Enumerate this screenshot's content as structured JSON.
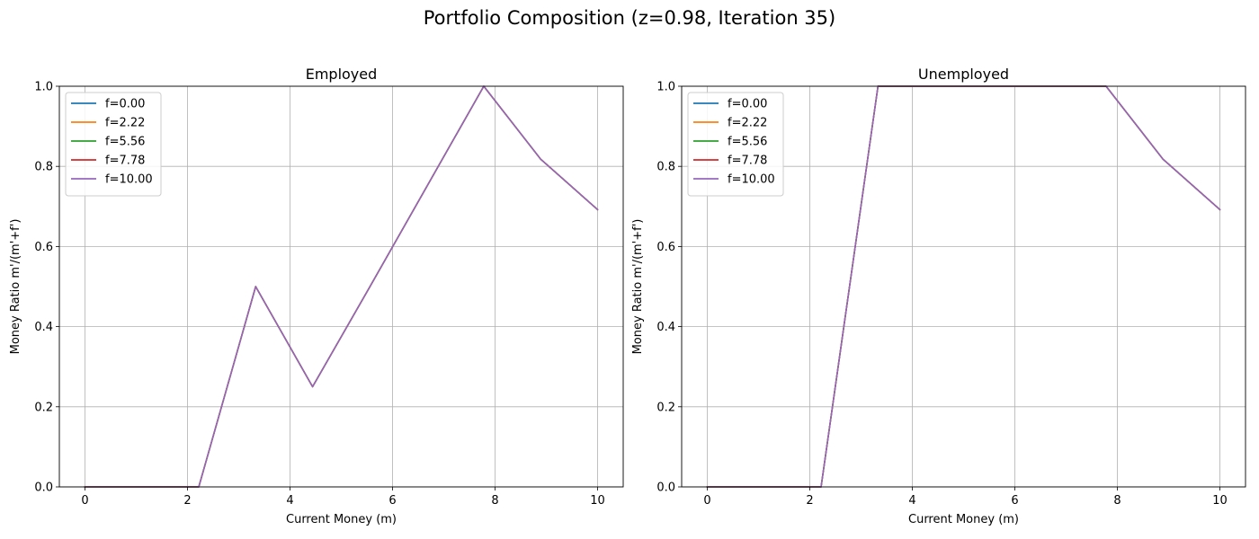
{
  "suptitle": "Portfolio Composition (z=0.98, Iteration 35)",
  "colors": [
    "#1f77b4",
    "#ff7f0e",
    "#2ca02c",
    "#d62728",
    "#9467bd"
  ],
  "chart_data": [
    {
      "type": "line",
      "title": "Employed",
      "xlabel": "Current Money (m)",
      "ylabel": "Money Ratio m'/(m'+f')",
      "xlim": [
        -0.5,
        10.5
      ],
      "ylim": [
        0,
        1
      ],
      "xticks": [
        0,
        2,
        4,
        6,
        8,
        10
      ],
      "yticks": [
        0.0,
        0.2,
        0.4,
        0.6,
        0.8,
        1.0
      ],
      "grid": true,
      "legend_position": "upper-left",
      "x": [
        0.0,
        1.11,
        2.22,
        3.33,
        4.44,
        5.56,
        6.67,
        7.78,
        8.89,
        10.0
      ],
      "series": [
        {
          "name": "f=0.00",
          "values": [
            0.0,
            0.0,
            0.0,
            0.5,
            0.25,
            0.5,
            0.75,
            1.0,
            0.818,
            0.692
          ]
        },
        {
          "name": "f=2.22",
          "values": [
            0.0,
            0.0,
            0.0,
            0.5,
            0.25,
            0.5,
            0.75,
            1.0,
            0.818,
            0.692
          ]
        },
        {
          "name": "f=5.56",
          "values": [
            0.0,
            0.0,
            0.0,
            0.5,
            0.25,
            0.5,
            0.75,
            1.0,
            0.818,
            0.692
          ]
        },
        {
          "name": "f=7.78",
          "values": [
            0.0,
            0.0,
            0.0,
            0.5,
            0.25,
            0.5,
            0.75,
            1.0,
            0.818,
            0.692
          ]
        },
        {
          "name": "f=10.00",
          "values": [
            0.0,
            0.0,
            0.0,
            0.5,
            0.25,
            0.5,
            0.75,
            1.0,
            0.818,
            0.692
          ]
        }
      ]
    },
    {
      "type": "line",
      "title": "Unemployed",
      "xlabel": "Current Money (m)",
      "ylabel": "Money Ratio m'/(m'+f')",
      "xlim": [
        -0.5,
        10.5
      ],
      "ylim": [
        0,
        1
      ],
      "xticks": [
        0,
        2,
        4,
        6,
        8,
        10
      ],
      "yticks": [
        0.0,
        0.2,
        0.4,
        0.6,
        0.8,
        1.0
      ],
      "grid": true,
      "legend_position": "upper-left",
      "x": [
        0.0,
        1.11,
        2.22,
        3.33,
        4.44,
        5.56,
        6.67,
        7.78,
        8.89,
        10.0
      ],
      "series": [
        {
          "name": "f=0.00",
          "values": [
            0.0,
            0.0,
            0.0,
            1.0,
            1.0,
            1.0,
            1.0,
            1.0,
            0.818,
            0.692
          ]
        },
        {
          "name": "f=2.22",
          "values": [
            0.0,
            0.0,
            0.0,
            1.0,
            1.0,
            1.0,
            1.0,
            1.0,
            0.818,
            0.692
          ]
        },
        {
          "name": "f=5.56",
          "values": [
            0.0,
            0.0,
            0.0,
            1.0,
            1.0,
            1.0,
            1.0,
            1.0,
            0.818,
            0.692
          ]
        },
        {
          "name": "f=7.78",
          "values": [
            0.0,
            0.0,
            0.0,
            1.0,
            1.0,
            1.0,
            1.0,
            1.0,
            0.818,
            0.692
          ]
        },
        {
          "name": "f=10.00",
          "values": [
            0.0,
            0.0,
            0.0,
            1.0,
            1.0,
            1.0,
            1.0,
            1.0,
            0.818,
            0.692
          ]
        }
      ]
    }
  ]
}
